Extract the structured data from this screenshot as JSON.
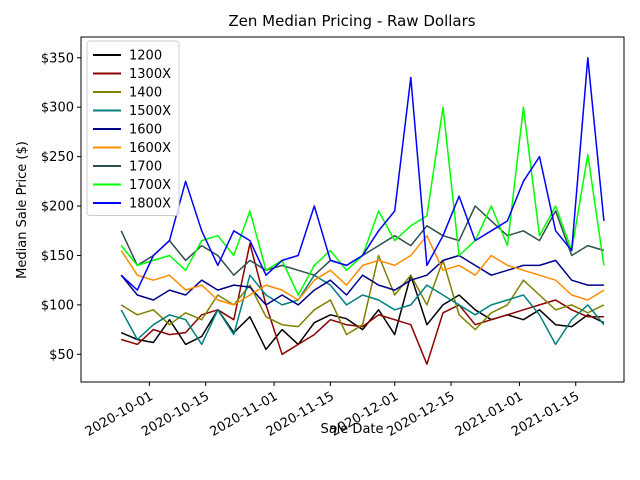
{
  "chart_data": {
    "type": "line",
    "title": "Zen Median Pricing - Raw Dollars",
    "xlabel": "Sale Date",
    "ylabel": "Median Sale Price ($)",
    "xlim": [
      "2020-09-14",
      "2021-01-27"
    ],
    "ylim": [
      22,
      371
    ],
    "x_ticks": [
      "2020-10-01",
      "2020-10-15",
      "2020-11-01",
      "2020-11-15",
      "2020-12-01",
      "2020-12-15",
      "2021-01-01",
      "2021-01-15"
    ],
    "y_ticks": [
      50,
      100,
      150,
      200,
      250,
      300,
      350
    ],
    "y_tick_labels": [
      "$50",
      "$100",
      "$150",
      "$200",
      "$250",
      "$300",
      "$350"
    ],
    "grid": false,
    "legend_position": "top-left",
    "x": [
      "2020-09-24",
      "2020-09-28",
      "2020-10-02",
      "2020-10-06",
      "2020-10-10",
      "2020-10-14",
      "2020-10-18",
      "2020-10-22",
      "2020-10-26",
      "2020-10-30",
      "2020-11-03",
      "2020-11-07",
      "2020-11-11",
      "2020-11-15",
      "2020-11-19",
      "2020-11-23",
      "2020-11-27",
      "2020-12-01",
      "2020-12-05",
      "2020-12-09",
      "2020-12-13",
      "2020-12-17",
      "2020-12-21",
      "2020-12-25",
      "2020-12-29",
      "2021-01-02",
      "2021-01-06",
      "2021-01-10",
      "2021-01-14",
      "2021-01-18",
      "2021-01-22"
    ],
    "series": [
      {
        "name": "1200",
        "color": "#000000",
        "values": [
          72,
          65,
          62,
          85,
          60,
          68,
          95,
          72,
          88,
          55,
          75,
          60,
          82,
          90,
          86,
          75,
          95,
          70,
          130,
          80,
          100,
          110,
          95,
          85,
          90,
          85,
          95,
          80,
          78,
          90,
          82
        ]
      },
      {
        "name": "1300X",
        "color": "#8b0000",
        "values": [
          65,
          60,
          75,
          70,
          72,
          90,
          95,
          85,
          162,
          100,
          50,
          60,
          70,
          85,
          80,
          78,
          90,
          85,
          80,
          40,
          92,
          100,
          80,
          85,
          90,
          95,
          100,
          105,
          95,
          88,
          88
        ]
      },
      {
        "name": "1400",
        "color": "#808000",
        "values": [
          100,
          90,
          95,
          80,
          92,
          85,
          110,
          100,
          120,
          88,
          80,
          78,
          95,
          105,
          70,
          80,
          150,
          110,
          130,
          100,
          145,
          90,
          75,
          92,
          100,
          125,
          110,
          95,
          100,
          92,
          100
        ]
      },
      {
        "name": "1500X",
        "color": "#008080",
        "values": [
          95,
          65,
          80,
          90,
          85,
          60,
          95,
          70,
          130,
          110,
          100,
          105,
          130,
          120,
          100,
          110,
          105,
          95,
          100,
          120,
          110,
          100,
          90,
          100,
          105,
          110,
          90,
          60,
          85,
          100,
          80
        ]
      },
      {
        "name": "1600",
        "color": "#00008b",
        "values": [
          130,
          110,
          105,
          115,
          110,
          125,
          115,
          120,
          118,
          100,
          110,
          100,
          115,
          125,
          110,
          130,
          120,
          115,
          125,
          130,
          145,
          150,
          140,
          130,
          135,
          140,
          140,
          145,
          125,
          120,
          120
        ]
      },
      {
        "name": "1600X",
        "color": "#ff8c00",
        "values": [
          155,
          130,
          125,
          130,
          115,
          120,
          105,
          100,
          110,
          120,
          115,
          105,
          125,
          135,
          120,
          140,
          145,
          140,
          150,
          170,
          135,
          140,
          130,
          150,
          140,
          135,
          130,
          125,
          110,
          105,
          115
        ]
      },
      {
        "name": "1700",
        "color": "#2f4f4f",
        "values": [
          175,
          140,
          150,
          165,
          145,
          160,
          150,
          130,
          145,
          135,
          140,
          135,
          130,
          145,
          140,
          150,
          160,
          170,
          160,
          180,
          170,
          165,
          200,
          185,
          170,
          175,
          165,
          195,
          150,
          160,
          155
        ]
      },
      {
        "name": "1700X",
        "color": "#00ff00",
        "values": [
          160,
          140,
          145,
          150,
          135,
          165,
          170,
          150,
          195,
          135,
          145,
          110,
          140,
          155,
          135,
          150,
          195,
          165,
          180,
          190,
          300,
          150,
          165,
          200,
          160,
          300,
          170,
          200,
          155,
          252,
          140
        ]
      },
      {
        "name": "1800X",
        "color": "#0000ff",
        "values": [
          130,
          115,
          150,
          165,
          225,
          175,
          140,
          175,
          165,
          130,
          145,
          150,
          200,
          145,
          140,
          150,
          175,
          195,
          330,
          140,
          170,
          210,
          165,
          175,
          185,
          225,
          250,
          175,
          155,
          350,
          185
        ]
      }
    ]
  }
}
